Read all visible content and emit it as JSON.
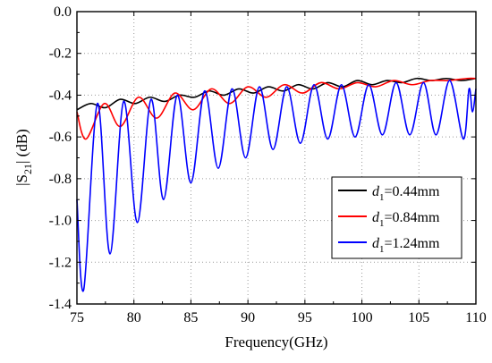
{
  "chart_data": {
    "type": "line",
    "xlabel": "Frequency(GHz)",
    "ylabel": "|S21| (dB)",
    "ylabel_parts": {
      "before": "|S",
      "sub": "21",
      "after": "| (dB)"
    },
    "xlim": [
      75,
      110
    ],
    "ylim": [
      -1.4,
      0.0
    ],
    "x_ticks": [
      75,
      80,
      85,
      90,
      95,
      100,
      105,
      110
    ],
    "y_ticks": [
      0.0,
      -0.2,
      -0.4,
      -0.6,
      -0.8,
      -1.0,
      -1.2,
      -1.4
    ],
    "grid": true,
    "legend_position": "right-middle",
    "series": [
      {
        "name": "d1=0.44mm",
        "label_parts": {
          "var": "d",
          "sub": "1",
          "rest": "=0.44mm"
        },
        "color": "#000000",
        "x": [
          75.0,
          76.2,
          77.5,
          78.8,
          80.1,
          81.4,
          82.7,
          84.0,
          85.3,
          86.6,
          87.9,
          89.2,
          90.5,
          91.8,
          93.1,
          94.4,
          95.7,
          97.0,
          98.3,
          99.6,
          100.9,
          102.2,
          103.5,
          104.8,
          106.1,
          107.4,
          108.7,
          110.0
        ],
        "y": [
          -0.47,
          -0.44,
          -0.46,
          -0.42,
          -0.44,
          -0.41,
          -0.43,
          -0.4,
          -0.41,
          -0.38,
          -0.4,
          -0.37,
          -0.39,
          -0.36,
          -0.38,
          -0.35,
          -0.37,
          -0.34,
          -0.36,
          -0.33,
          -0.35,
          -0.33,
          -0.34,
          -0.32,
          -0.33,
          -0.32,
          -0.33,
          -0.32
        ]
      },
      {
        "name": "d1=0.84mm",
        "label_parts": {
          "var": "d",
          "sub": "1",
          "rest": "=0.84mm"
        },
        "color": "#ff0000",
        "x": [
          75.0,
          75.8,
          77.4,
          78.8,
          80.4,
          82.0,
          83.6,
          85.2,
          86.8,
          88.4,
          90.0,
          91.6,
          93.2,
          94.8,
          96.4,
          98.0,
          99.6,
          101.2,
          102.8,
          104.4,
          106.0,
          107.6,
          109.2,
          110.0
        ],
        "y": [
          -0.48,
          -0.61,
          -0.44,
          -0.55,
          -0.41,
          -0.51,
          -0.39,
          -0.47,
          -0.37,
          -0.44,
          -0.36,
          -0.41,
          -0.35,
          -0.39,
          -0.34,
          -0.37,
          -0.34,
          -0.36,
          -0.33,
          -0.35,
          -0.33,
          -0.33,
          -0.32,
          -0.32
        ]
      },
      {
        "name": "d1=1.24mm",
        "label_parts": {
          "var": "d",
          "sub": "1",
          "rest": "=1.24mm"
        },
        "color": "#0000ff",
        "x": [
          75.0,
          75.6,
          76.8,
          77.9,
          79.1,
          80.3,
          81.5,
          82.6,
          83.8,
          85.0,
          86.2,
          87.4,
          88.6,
          89.8,
          91.0,
          92.2,
          93.4,
          94.6,
          95.8,
          97.0,
          98.2,
          99.4,
          100.6,
          101.8,
          103.0,
          104.2,
          105.4,
          106.5,
          107.7,
          108.9,
          109.4,
          109.7,
          110.0
        ],
        "y": [
          -0.9,
          -1.33,
          -0.44,
          -1.16,
          -0.43,
          -1.01,
          -0.42,
          -0.9,
          -0.4,
          -0.82,
          -0.38,
          -0.75,
          -0.37,
          -0.7,
          -0.36,
          -0.66,
          -0.36,
          -0.63,
          -0.35,
          -0.61,
          -0.35,
          -0.6,
          -0.35,
          -0.59,
          -0.34,
          -0.59,
          -0.34,
          -0.59,
          -0.33,
          -0.61,
          -0.37,
          -0.48,
          -0.37
        ]
      }
    ]
  }
}
